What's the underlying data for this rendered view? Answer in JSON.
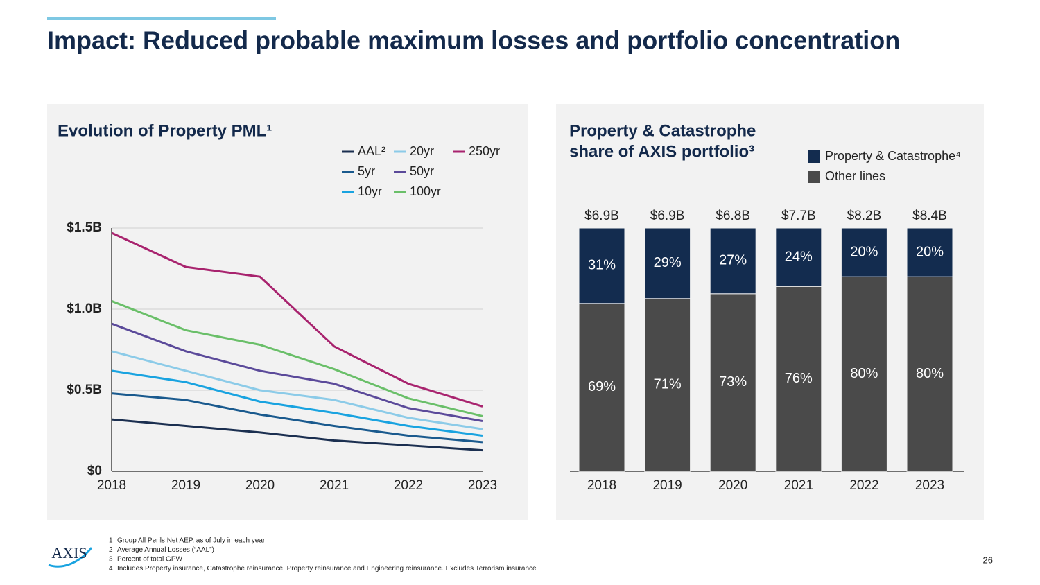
{
  "page": {
    "title": "Impact: Reduced probable maximum losses and portfolio concentration",
    "logo": "AXIS",
    "page_number": "26",
    "footnotes": [
      {
        "num": "1",
        "text": "Group All Perils Net AEP, as of July in each year"
      },
      {
        "num": "2",
        "text": "Average Annual Losses (“AAL”)"
      },
      {
        "num": "3",
        "text": "Percent of total GPW"
      },
      {
        "num": "4",
        "text": "Includes Property insurance, Catastrophe reinsurance, Property reinsurance and Engineering reinsurance. Excludes Terrorism insurance"
      }
    ]
  },
  "chart_data": [
    {
      "type": "line",
      "title": "Evolution of Property PML¹",
      "categories": [
        "2018",
        "2019",
        "2020",
        "2021",
        "2022",
        "2023"
      ],
      "ylim": [
        0,
        1.5
      ],
      "yticks": [
        {
          "value": 0,
          "label": "$0"
        },
        {
          "value": 0.5,
          "label": "$0.5B"
        },
        {
          "value": 1.0,
          "label": "$1.0B"
        },
        {
          "value": 1.5,
          "label": "$1.5B"
        }
      ],
      "grid": true,
      "series": [
        {
          "name": "AAL²",
          "color": "#1b2f50",
          "values": [
            0.32,
            0.28,
            0.24,
            0.19,
            0.16,
            0.13
          ]
        },
        {
          "name": "5yr",
          "color": "#1a5a8e",
          "values": [
            0.48,
            0.44,
            0.35,
            0.28,
            0.22,
            0.18
          ]
        },
        {
          "name": "10yr",
          "color": "#19a3e0",
          "values": [
            0.62,
            0.55,
            0.43,
            0.36,
            0.28,
            0.22
          ]
        },
        {
          "name": "20yr",
          "color": "#8ccbe8",
          "values": [
            0.74,
            0.62,
            0.5,
            0.44,
            0.33,
            0.26
          ]
        },
        {
          "name": "50yr",
          "color": "#5b4a9a",
          "values": [
            0.91,
            0.74,
            0.62,
            0.54,
            0.39,
            0.31
          ]
        },
        {
          "name": "100yr",
          "color": "#6abf69",
          "values": [
            1.05,
            0.87,
            0.78,
            0.63,
            0.45,
            0.34
          ]
        },
        {
          "name": "250yr",
          "color": "#a8236e",
          "values": [
            1.47,
            1.26,
            1.2,
            0.77,
            0.54,
            0.4
          ]
        }
      ]
    },
    {
      "type": "stacked_bar",
      "title": [
        "Property & Catastrophe",
        "share of AXIS portfolio³"
      ],
      "categories": [
        "2018",
        "2019",
        "2020",
        "2021",
        "2022",
        "2023"
      ],
      "ylim": [
        0,
        100
      ],
      "totals": {
        "values": [
          6.9,
          6.9,
          6.8,
          7.7,
          8.2,
          8.4
        ],
        "value_labels": [
          "$6.9B",
          "$6.9B",
          "$6.8B",
          "$7.7B",
          "$8.2B",
          "$8.4B"
        ]
      },
      "series": [
        {
          "name": "Property & Catastrophe⁴",
          "color": "#132c4f",
          "values": [
            31,
            29,
            27,
            24,
            20,
            20
          ],
          "value_labels": [
            "31%",
            "29%",
            "27%",
            "24%",
            "20%",
            "20%"
          ]
        },
        {
          "name": "Other lines",
          "color": "#4a4a4a",
          "values": [
            69,
            71,
            73,
            76,
            80,
            80
          ],
          "value_labels": [
            "69%",
            "71%",
            "73%",
            "76%",
            "80%",
            "80%"
          ]
        }
      ]
    }
  ]
}
